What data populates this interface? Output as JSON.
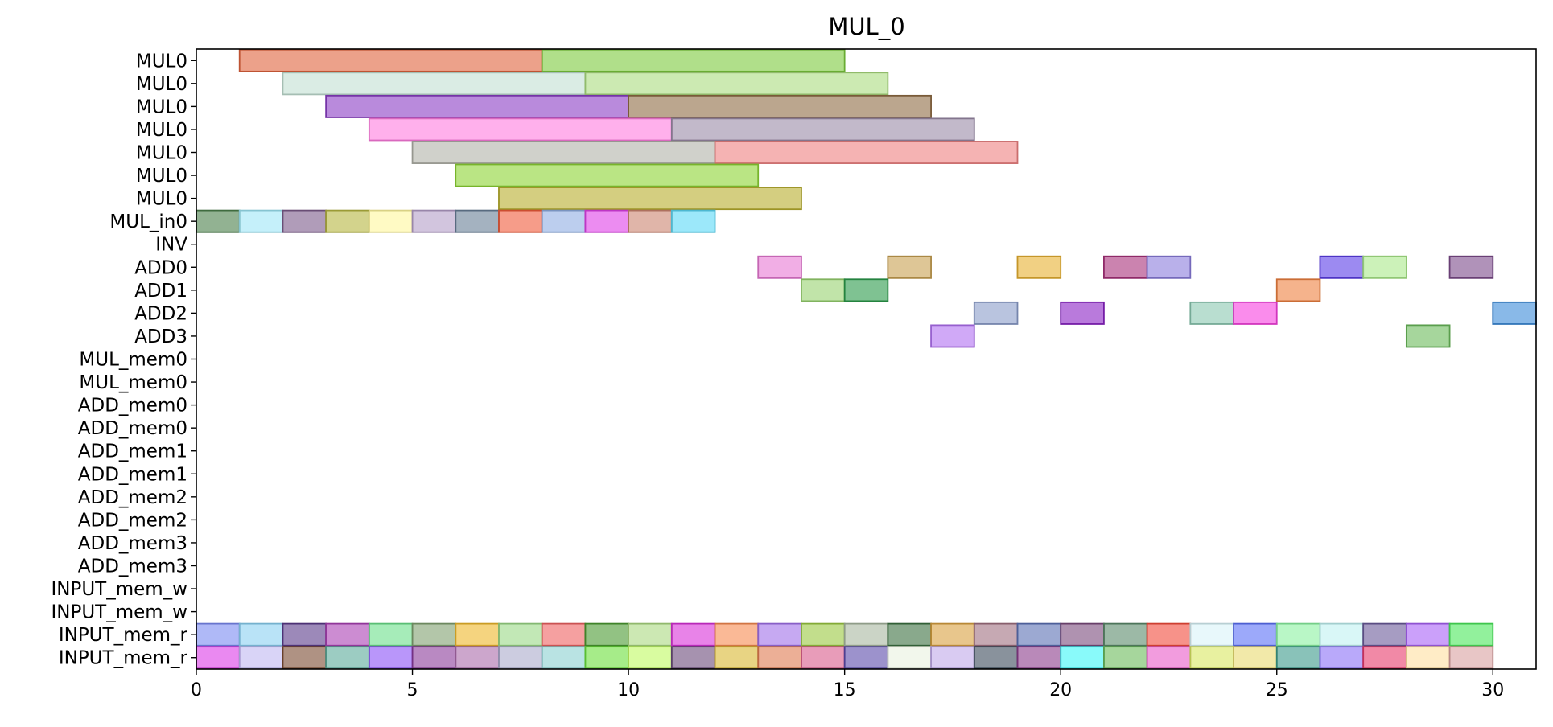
{
  "chart_data": {
    "type": "bar",
    "subtype": "gantt",
    "title": "MUL_0",
    "xlabel": "",
    "ylabel": "",
    "xlim": [
      0,
      31
    ],
    "xticks": [
      0,
      5,
      10,
      15,
      20,
      25,
      30
    ],
    "grid": false,
    "categories": [
      "MUL0",
      "MUL0",
      "MUL0",
      "MUL0",
      "MUL0",
      "MUL0",
      "MUL0",
      "MUL_in0",
      "INV",
      "ADD0",
      "ADD1",
      "ADD2",
      "ADD3",
      "MUL_mem0",
      "MUL_mem0",
      "ADD_mem0",
      "ADD_mem0",
      "ADD_mem1",
      "ADD_mem1",
      "ADD_mem2",
      "ADD_mem2",
      "ADD_mem3",
      "ADD_mem3",
      "INPUT_mem_w",
      "INPUT_mem_w",
      "INPUT_mem_r",
      "INPUT_mem_r"
    ],
    "tasks": [
      {
        "row": 0,
        "start": 1,
        "end": 8,
        "color": "#e0623c"
      },
      {
        "row": 0,
        "start": 8,
        "end": 15,
        "color": "#7cca3c"
      },
      {
        "row": 1,
        "start": 2,
        "end": 9,
        "color": "#c2e0d2"
      },
      {
        "row": 1,
        "start": 9,
        "end": 16,
        "color": "#aadc7e"
      },
      {
        "row": 2,
        "start": 3,
        "end": 10,
        "color": "#8a3cc4"
      },
      {
        "row": 2,
        "start": 10,
        "end": 17,
        "color": "#8e6a42"
      },
      {
        "row": 3,
        "start": 4,
        "end": 11,
        "color": "#ff7ce0"
      },
      {
        "row": 3,
        "start": 11,
        "end": 18,
        "color": "#9a8aa6"
      },
      {
        "row": 4,
        "start": 5,
        "end": 12,
        "color": "#b0b2a8"
      },
      {
        "row": 4,
        "start": 12,
        "end": 19,
        "color": "#ee8080"
      },
      {
        "row": 5,
        "start": 6,
        "end": 13,
        "color": "#8cd432"
      },
      {
        "row": 6,
        "start": 7,
        "end": 14,
        "color": "#b8ae2c"
      },
      {
        "row": 7,
        "start": 0,
        "end": 1,
        "color": "#4a7e4a"
      },
      {
        "row": 7,
        "start": 1,
        "end": 2,
        "color": "#9ee6f6"
      },
      {
        "row": 7,
        "start": 2,
        "end": 3,
        "color": "#7c5a8a"
      },
      {
        "row": 7,
        "start": 3,
        "end": 4,
        "color": "#b6b640"
      },
      {
        "row": 7,
        "start": 4,
        "end": 5,
        "color": "#fff69c"
      },
      {
        "row": 7,
        "start": 5,
        "end": 6,
        "color": "#b49ec8"
      },
      {
        "row": 7,
        "start": 6,
        "end": 7,
        "color": "#687e96"
      },
      {
        "row": 7,
        "start": 7,
        "end": 8,
        "color": "#f05a3a"
      },
      {
        "row": 7,
        "start": 8,
        "end": 9,
        "color": "#90aee2"
      },
      {
        "row": 7,
        "start": 9,
        "end": 10,
        "color": "#e040e8"
      },
      {
        "row": 7,
        "start": 10,
        "end": 11,
        "color": "#cc8470"
      },
      {
        "row": 7,
        "start": 11,
        "end": 12,
        "color": "#5ad8f6"
      },
      {
        "row": 9,
        "start": 13,
        "end": 14,
        "color": "#e878d4"
      },
      {
        "row": 9,
        "start": 16,
        "end": 17,
        "color": "#c8a050"
      },
      {
        "row": 9,
        "start": 19,
        "end": 20,
        "color": "#e8b030"
      },
      {
        "row": 9,
        "start": 21,
        "end": 22,
        "color": "#a8307a"
      },
      {
        "row": 9,
        "start": 22,
        "end": 23,
        "color": "#8a7cdc"
      },
      {
        "row": 9,
        "start": 26,
        "end": 27,
        "color": "#5a3ce8"
      },
      {
        "row": 9,
        "start": 27,
        "end": 28,
        "color": "#aaea8a"
      },
      {
        "row": 9,
        "start": 29,
        "end": 30,
        "color": "#7c4a8a"
      },
      {
        "row": 10,
        "start": 14,
        "end": 15,
        "color": "#98d270"
      },
      {
        "row": 10,
        "start": 15,
        "end": 16,
        "color": "#2a9a4a"
      },
      {
        "row": 10,
        "start": 25,
        "end": 26,
        "color": "#ee8040"
      },
      {
        "row": 11,
        "start": 18,
        "end": 19,
        "color": "#8a9cca"
      },
      {
        "row": 11,
        "start": 20,
        "end": 21,
        "color": "#8a22c4"
      },
      {
        "row": 11,
        "start": 23,
        "end": 24,
        "color": "#8ac8b0"
      },
      {
        "row": 11,
        "start": 24,
        "end": 25,
        "color": "#f640e0"
      },
      {
        "row": 11,
        "start": 30,
        "end": 31,
        "color": "#3a8ad8"
      },
      {
        "row": 12,
        "start": 17,
        "end": 18,
        "color": "#b070f2"
      },
      {
        "row": 12,
        "start": 28,
        "end": 29,
        "color": "#6aba5a"
      },
      {
        "row": 25,
        "start": 0,
        "end": 1,
        "color": "#7a8af2"
      },
      {
        "row": 25,
        "start": 1,
        "end": 2,
        "color": "#8ad0f2"
      },
      {
        "row": 25,
        "start": 2,
        "end": 3,
        "color": "#5a3a8a"
      },
      {
        "row": 25,
        "start": 3,
        "end": 4,
        "color": "#aa40b4"
      },
      {
        "row": 25,
        "start": 4,
        "end": 5,
        "color": "#6ae08a"
      },
      {
        "row": 25,
        "start": 5,
        "end": 6,
        "color": "#80a070"
      },
      {
        "row": 25,
        "start": 6,
        "end": 7,
        "color": "#eeb82a"
      },
      {
        "row": 25,
        "start": 7,
        "end": 8,
        "color": "#9ad886"
      },
      {
        "row": 25,
        "start": 8,
        "end": 9,
        "color": "#ee6060"
      },
      {
        "row": 25,
        "start": 9,
        "end": 10,
        "color": "#4a9a30"
      },
      {
        "row": 25,
        "start": 10,
        "end": 11,
        "color": "#aad880"
      },
      {
        "row": 25,
        "start": 11,
        "end": 12,
        "color": "#d830d8"
      },
      {
        "row": 25,
        "start": 12,
        "end": 13,
        "color": "#f68a50"
      },
      {
        "row": 25,
        "start": 13,
        "end": 14,
        "color": "#a070ea"
      },
      {
        "row": 25,
        "start": 14,
        "end": 15,
        "color": "#9ac840"
      },
      {
        "row": 25,
        "start": 15,
        "end": 16,
        "color": "#a8b8a0"
      },
      {
        "row": 25,
        "start": 16,
        "end": 17,
        "color": "#3a7040"
      },
      {
        "row": 25,
        "start": 17,
        "end": 18,
        "color": "#d8a040"
      },
      {
        "row": 25,
        "start": 18,
        "end": 19,
        "color": "#a07080"
      },
      {
        "row": 25,
        "start": 19,
        "end": 20,
        "color": "#5a70b4"
      },
      {
        "row": 25,
        "start": 20,
        "end": 21,
        "color": "#7a4a7c"
      },
      {
        "row": 25,
        "start": 21,
        "end": 22,
        "color": "#5a8a6a"
      },
      {
        "row": 25,
        "start": 22,
        "end": 23,
        "color": "#f24a3a"
      },
      {
        "row": 25,
        "start": 23,
        "end": 24,
        "color": "#d8f4f8"
      },
      {
        "row": 25,
        "start": 24,
        "end": 25,
        "color": "#5a70f6"
      },
      {
        "row": 25,
        "start": 25,
        "end": 26,
        "color": "#8af2a0"
      },
      {
        "row": 25,
        "start": 26,
        "end": 27,
        "color": "#c0f2f2"
      },
      {
        "row": 25,
        "start": 27,
        "end": 28,
        "color": "#6a5a9a"
      },
      {
        "row": 25,
        "start": 28,
        "end": 29,
        "color": "#a860f6"
      },
      {
        "row": 25,
        "start": 29,
        "end": 30,
        "color": "#4ae85a"
      },
      {
        "row": 26,
        "start": 0,
        "end": 1,
        "color": "#dc3ae8"
      },
      {
        "row": 26,
        "start": 1,
        "end": 2,
        "color": "#c0b8f2"
      },
      {
        "row": 26,
        "start": 2,
        "end": 3,
        "color": "#7a4a30"
      },
      {
        "row": 26,
        "start": 3,
        "end": 4,
        "color": "#5aaa9a"
      },
      {
        "row": 26,
        "start": 4,
        "end": 5,
        "color": "#8a50f6"
      },
      {
        "row": 26,
        "start": 5,
        "end": 6,
        "color": "#8a3a9a"
      },
      {
        "row": 26,
        "start": 6,
        "end": 7,
        "color": "#aa6aaa"
      },
      {
        "row": 26,
        "start": 7,
        "end": 8,
        "color": "#aaaacc"
      },
      {
        "row": 26,
        "start": 8,
        "end": 9,
        "color": "#8ad0d0"
      },
      {
        "row": 26,
        "start": 9,
        "end": 10,
        "color": "#6ae03a"
      },
      {
        "row": 26,
        "start": 10,
        "end": 11,
        "color": "#c0fa60"
      },
      {
        "row": 26,
        "start": 11,
        "end": 12,
        "color": "#6a4a7a"
      },
      {
        "row": 26,
        "start": 12,
        "end": 13,
        "color": "#d8b830"
      },
      {
        "row": 26,
        "start": 13,
        "end": 14,
        "color": "#e07a50"
      },
      {
        "row": 26,
        "start": 14,
        "end": 15,
        "color": "#d85a8a"
      },
      {
        "row": 26,
        "start": 15,
        "end": 16,
        "color": "#5a4aaa"
      },
      {
        "row": 26,
        "start": 16,
        "end": 17,
        "color": "#eaf2e0"
      },
      {
        "row": 26,
        "start": 17,
        "end": 18,
        "color": "#c0a8ea"
      },
      {
        "row": 26,
        "start": 18,
        "end": 19,
        "color": "#3a4a5a"
      },
      {
        "row": 26,
        "start": 19,
        "end": 20,
        "color": "#8a3a8a"
      },
      {
        "row": 26,
        "start": 20,
        "end": 21,
        "color": "#3af6f6"
      },
      {
        "row": 26,
        "start": 21,
        "end": 22,
        "color": "#6aba5a"
      },
      {
        "row": 26,
        "start": 22,
        "end": 23,
        "color": "#ea5ac8"
      },
      {
        "row": 26,
        "start": 23,
        "end": 24,
        "color": "#d8e860"
      },
      {
        "row": 26,
        "start": 24,
        "end": 25,
        "color": "#eada70"
      },
      {
        "row": 26,
        "start": 25,
        "end": 26,
        "color": "#3a9a8a"
      },
      {
        "row": 26,
        "start": 26,
        "end": 27,
        "color": "#8a70f6"
      },
      {
        "row": 26,
        "start": 27,
        "end": 28,
        "color": "#e83a6a"
      },
      {
        "row": 26,
        "start": 28,
        "end": 29,
        "color": "#ffe0a0"
      },
      {
        "row": 26,
        "start": 29,
        "end": 30,
        "color": "#d8a0a0"
      }
    ]
  }
}
